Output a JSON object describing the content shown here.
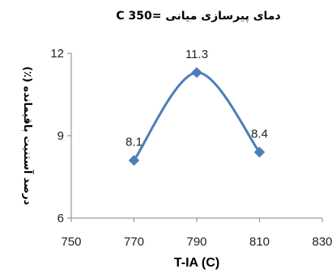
{
  "chart_data": {
    "type": "line",
    "title": "دمای پیرسازی میانی =350 C",
    "xlabel": "T-IA (C)",
    "ylabel": "درصد آستنیت باقیمانده (٪)",
    "xlim": [
      750,
      830
    ],
    "ylim": [
      6,
      12
    ],
    "x_ticks": [
      "750",
      "770",
      "790",
      "810",
      "830"
    ],
    "y_ticks": [
      "6",
      "9",
      "12"
    ],
    "grid": false,
    "line_color": "#4a7ebb",
    "series": [
      {
        "x": [
          770,
          790,
          810
        ],
        "y": [
          8.1,
          11.3,
          8.4
        ],
        "labels": [
          "8.1",
          "11.3",
          "8.4"
        ]
      }
    ]
  }
}
